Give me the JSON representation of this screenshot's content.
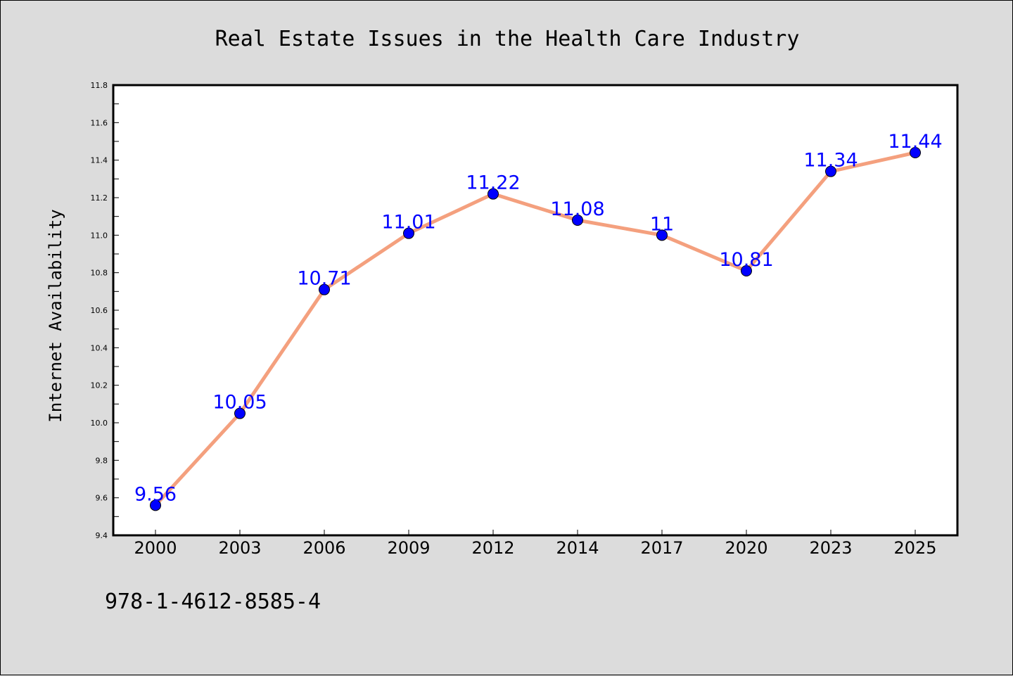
{
  "chart_data": {
    "type": "line",
    "title": "Real Estate Issues in the Health Care Industry",
    "xlabel": "",
    "ylabel": "Internet Availability",
    "categories": [
      "2000",
      "2003",
      "2006",
      "2009",
      "2012",
      "2014",
      "2017",
      "2020",
      "2023",
      "2025"
    ],
    "series": [
      {
        "values": [
          9.56,
          10.05,
          10.71,
          11.01,
          11.22,
          11.08,
          11.0,
          10.81,
          11.34,
          11.44
        ],
        "labels": [
          "9.56",
          "10.05",
          "10.71",
          "11.01",
          "11.22",
          "11.08",
          "11",
          "10.81",
          "11.34",
          "11.44"
        ],
        "line_color": "#f4a07e",
        "marker_color": "#0000ff",
        "label_color": "#0000ff"
      }
    ],
    "ylim": [
      9.4,
      11.8
    ],
    "yticks": [
      "9.4",
      "9.6",
      "9.8",
      "10.0",
      "10.2",
      "10.4",
      "10.6",
      "10.8",
      "11.0",
      "11.2",
      "11.4",
      "11.6",
      "11.8"
    ],
    "grid": false,
    "legend": "none"
  },
  "footer": {
    "isbn": "978-1-4612-8585-4"
  },
  "colors": {
    "page_background": "#dcdcdc",
    "plot_background": "#ffffff"
  }
}
